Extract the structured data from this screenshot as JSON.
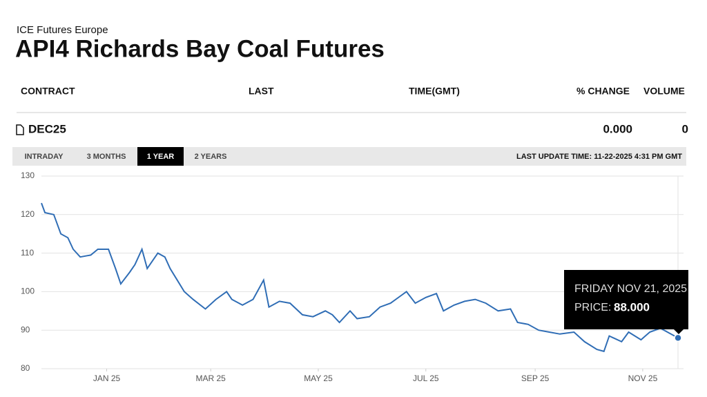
{
  "header": {
    "exchange": "ICE Futures Europe",
    "title": "API4 Richards Bay Coal Futures"
  },
  "table": {
    "columns": [
      "CONTRACT",
      "LAST",
      "TIME(GMT)",
      "% CHANGE",
      "VOLUME"
    ],
    "row": {
      "contract": "DEC25",
      "change": "0.000",
      "volume": "0"
    }
  },
  "tabs": {
    "items": [
      "INTRADAY",
      "3 MONTHS",
      "1 YEAR",
      "2 YEARS"
    ],
    "active": 2,
    "last_update": "LAST UPDATE TIME: 11-22-2025 4:31 PM GMT"
  },
  "tooltip": {
    "date": "FRIDAY NOV 21, 2025",
    "price_label": "PRICE:",
    "price": "88.000"
  },
  "chart_data": {
    "type": "line",
    "color": "#2f6db5",
    "grid": true,
    "x": [
      "2024-11-25",
      "2024-11-27",
      "2024-12-02",
      "2024-12-06",
      "2024-12-10",
      "2024-12-13",
      "2024-12-17",
      "2024-12-23",
      "2024-12-27",
      "2025-01-02",
      "2025-01-06",
      "2025-01-09",
      "2025-01-14",
      "2025-01-17",
      "2025-01-21",
      "2025-01-24",
      "2025-01-30",
      "2025-02-03",
      "2025-02-06",
      "2025-02-10",
      "2025-02-14",
      "2025-02-19",
      "2025-02-26",
      "2025-03-04",
      "2025-03-10",
      "2025-03-13",
      "2025-03-19",
      "2025-03-25",
      "2025-03-31",
      "2025-04-03",
      "2025-04-09",
      "2025-04-15",
      "2025-04-22",
      "2025-04-28",
      "2025-05-05",
      "2025-05-09",
      "2025-05-13",
      "2025-05-19",
      "2025-05-23",
      "2025-05-30",
      "2025-06-05",
      "2025-06-11",
      "2025-06-17",
      "2025-06-20",
      "2025-06-25",
      "2025-07-01",
      "2025-07-07",
      "2025-07-11",
      "2025-07-17",
      "2025-07-23",
      "2025-07-29",
      "2025-08-04",
      "2025-08-11",
      "2025-08-18",
      "2025-08-22",
      "2025-08-28",
      "2025-09-03",
      "2025-09-09",
      "2025-09-15",
      "2025-09-23",
      "2025-09-29",
      "2025-10-06",
      "2025-10-10",
      "2025-10-13",
      "2025-10-20",
      "2025-10-24",
      "2025-10-31",
      "2025-11-05",
      "2025-11-11",
      "2025-11-21"
    ],
    "values": [
      123,
      120.5,
      120,
      115,
      114,
      111,
      109,
      109.5,
      111,
      111,
      106,
      102,
      105,
      107,
      111,
      106,
      110,
      109,
      106,
      103,
      100,
      98,
      95.5,
      98,
      100,
      98,
      96.5,
      98,
      103,
      96,
      97.5,
      97,
      94,
      93.5,
      95,
      94,
      92,
      95,
      93,
      93.5,
      96,
      97,
      99,
      100,
      97,
      98.5,
      99.5,
      95,
      96.5,
      97.5,
      98,
      97,
      95,
      95.5,
      92,
      91.5,
      90,
      89.5,
      89,
      89.5,
      87,
      85,
      84.5,
      88.5,
      87,
      89.5,
      87.5,
      89.5,
      90.5,
      88
    ],
    "xlim": [
      "2024-11-25",
      "2025-11-21"
    ],
    "xticks": [
      {
        "value": "2025-01-01",
        "label": "JAN 25"
      },
      {
        "value": "2025-03-01",
        "label": "MAR 25"
      },
      {
        "value": "2025-05-01",
        "label": "MAY 25"
      },
      {
        "value": "2025-07-01",
        "label": "JUL 25"
      },
      {
        "value": "2025-09-01",
        "label": "SEP 25"
      },
      {
        "value": "2025-11-01",
        "label": "NOV 25"
      }
    ],
    "ylim": [
      80,
      130
    ],
    "yticks": [
      80,
      90,
      100,
      110,
      120,
      130
    ]
  }
}
